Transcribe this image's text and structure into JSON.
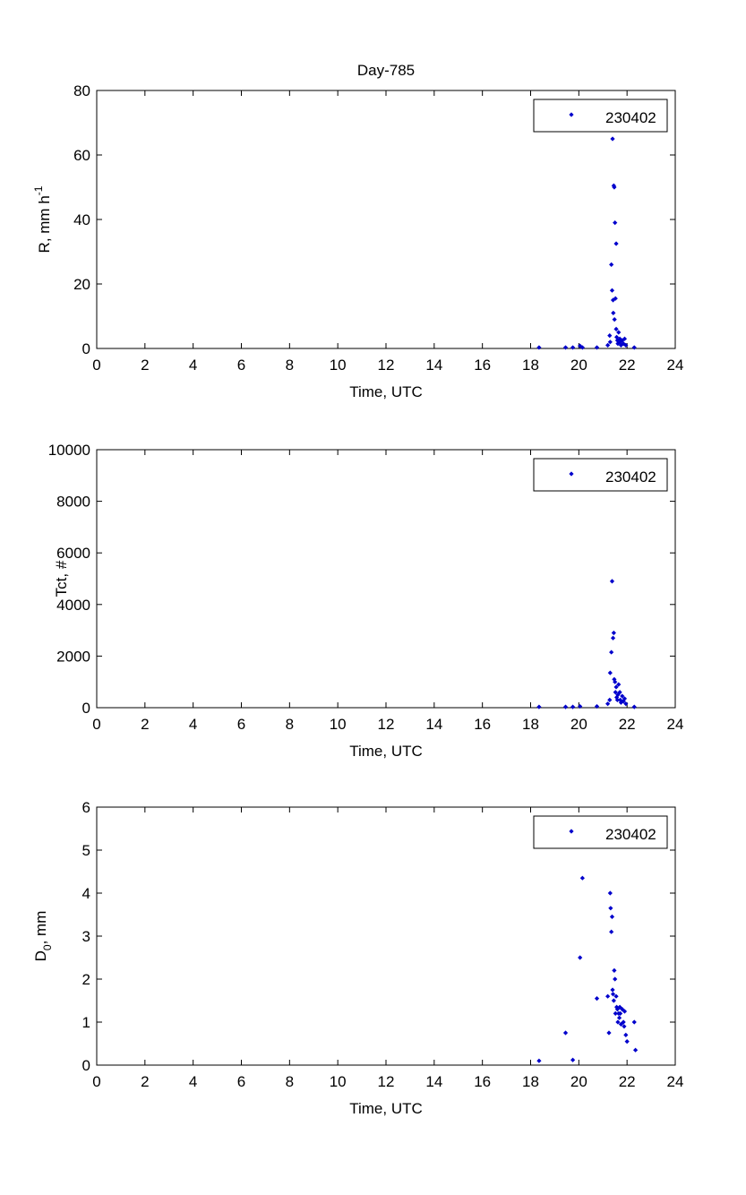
{
  "chart_data": [
    {
      "type": "scatter",
      "title": "Day-785",
      "xlabel": "Time, UTC",
      "ylabel_main": "R, mm h",
      "ylabel_sup": "-1",
      "xlim": [
        0,
        24
      ],
      "ylim": [
        0,
        80
      ],
      "xticks": [
        0,
        2,
        4,
        6,
        8,
        10,
        12,
        14,
        16,
        18,
        20,
        22,
        24
      ],
      "yticks": [
        0,
        20,
        40,
        60,
        80
      ],
      "grid": false,
      "legend_position": "top-right",
      "marker_color": "#0000cc",
      "series": [
        {
          "name": "230402",
          "x": [
            18.35,
            19.45,
            19.75,
            20.05,
            20.15,
            20.75,
            21.2,
            21.28,
            21.3,
            21.35,
            21.38,
            21.4,
            21.42,
            21.43,
            21.45,
            21.47,
            21.48,
            21.5,
            21.52,
            21.55,
            21.55,
            21.57,
            21.6,
            21.62,
            21.65,
            21.7,
            21.72,
            21.75,
            21.8,
            21.85,
            21.9,
            21.95,
            22.3
          ],
          "y": [
            0.3,
            0.3,
            0.3,
            0.8,
            0.3,
            0.3,
            1.0,
            4.0,
            2.0,
            26.0,
            18.0,
            65.0,
            15.0,
            11.0,
            50.5,
            50.0,
            9.0,
            39.0,
            15.5,
            32.5,
            6.0,
            3.5,
            2.5,
            1.5,
            5.0,
            3.0,
            2.0,
            1.0,
            2.5,
            1.5,
            3.0,
            1.0,
            0.3
          ]
        }
      ]
    },
    {
      "type": "scatter",
      "title": "",
      "xlabel": "Time, UTC",
      "ylabel_main": "Tct, #",
      "ylabel_sup": "",
      "xlim": [
        0,
        24
      ],
      "ylim": [
        0,
        10000
      ],
      "xticks": [
        0,
        2,
        4,
        6,
        8,
        10,
        12,
        14,
        16,
        18,
        20,
        22,
        24
      ],
      "yticks": [
        0,
        2000,
        4000,
        6000,
        8000,
        10000
      ],
      "grid": false,
      "legend_position": "top-right",
      "marker_color": "#0000cc",
      "series": [
        {
          "name": "230402",
          "x": [
            18.35,
            19.45,
            19.75,
            20.05,
            20.75,
            21.2,
            21.28,
            21.3,
            21.35,
            21.38,
            21.42,
            21.45,
            21.47,
            21.5,
            21.52,
            21.55,
            21.57,
            21.6,
            21.62,
            21.65,
            21.7,
            21.72,
            21.75,
            21.8,
            21.85,
            21.9,
            21.95,
            22.3
          ],
          "y": [
            30,
            30,
            30,
            50,
            50,
            150,
            300,
            1350,
            2150,
            4900,
            2700,
            2900,
            1100,
            1000,
            600,
            800,
            400,
            300,
            500,
            900,
            600,
            300,
            200,
            450,
            250,
            350,
            150,
            30
          ]
        }
      ]
    },
    {
      "type": "scatter",
      "title": "",
      "xlabel": "Time, UTC",
      "ylabel_main": "D",
      "ylabel_sub": "0",
      "ylabel_tail": ", mm",
      "xlim": [
        0,
        24
      ],
      "ylim": [
        0,
        6
      ],
      "xticks": [
        0,
        2,
        4,
        6,
        8,
        10,
        12,
        14,
        16,
        18,
        20,
        22,
        24
      ],
      "yticks": [
        0,
        1,
        2,
        3,
        4,
        5,
        6
      ],
      "grid": false,
      "legend_position": "top-right",
      "marker_color": "#0000cc",
      "series": [
        {
          "name": "230402",
          "x": [
            18.35,
            19.45,
            19.75,
            20.05,
            20.15,
            20.75,
            21.2,
            21.25,
            21.3,
            21.32,
            21.35,
            21.38,
            21.4,
            21.42,
            21.45,
            21.47,
            21.5,
            21.52,
            21.55,
            21.57,
            21.6,
            21.62,
            21.65,
            21.68,
            21.7,
            21.72,
            21.75,
            21.8,
            21.85,
            21.88,
            21.9,
            21.95,
            22.0,
            22.3,
            22.35
          ],
          "y": [
            0.1,
            0.75,
            0.12,
            2.5,
            4.35,
            1.55,
            1.6,
            0.75,
            4.0,
            3.65,
            3.1,
            3.45,
            1.75,
            1.65,
            1.5,
            2.2,
            2.0,
            1.2,
            1.6,
            1.35,
            1.3,
            1.0,
            1.2,
            1.1,
            1.35,
            1.2,
            0.95,
            1.3,
            1.0,
            0.9,
            1.25,
            0.7,
            0.55,
            1.0,
            0.35
          ]
        }
      ]
    }
  ]
}
